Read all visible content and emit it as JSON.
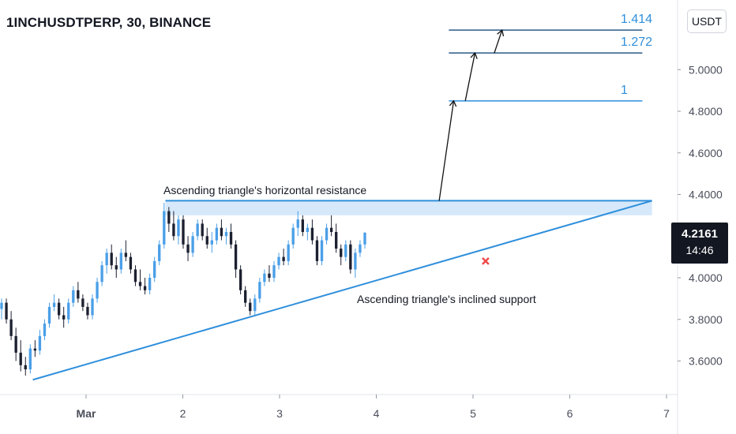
{
  "header": {
    "symbol_title": "1INCHUSDTPERP, 30, BINANCE"
  },
  "toolbar": {
    "currency_label": "USDT"
  },
  "price_tag": {
    "price": "4.2161",
    "countdown": "14:46"
  },
  "colors": {
    "up": "#4a9fe8",
    "down": "#1c2030",
    "line": "#2f8fdb",
    "zone": "#d6e9fb",
    "cross": "#ef4b4b",
    "text": "#131722",
    "axis": "#4a4e5a"
  },
  "chart_data": {
    "type": "candlestick",
    "x_axis": {
      "tick_labels": [
        "Mar",
        "2",
        "3",
        "4",
        "5",
        "6",
        "7"
      ],
      "tick_values": [
        1,
        2,
        3,
        4,
        5,
        6,
        7
      ]
    },
    "y_axis": {
      "tick_labels": [
        "3.6000",
        "3.8000",
        "4.0000",
        "4.2000",
        "4.4000",
        "4.6000",
        "4.8000",
        "5.0000"
      ],
      "tick_values": [
        3.6,
        3.8,
        4.0,
        4.2,
        4.4,
        4.6,
        4.8,
        5.0
      ],
      "range": [
        3.48,
        5.32
      ]
    },
    "grid": false,
    "last_price": 4.2161,
    "candles_ohlc": [
      [
        3.85,
        3.9,
        3.8,
        3.88
      ],
      [
        3.88,
        3.9,
        3.78,
        3.8
      ],
      [
        3.8,
        3.84,
        3.7,
        3.72
      ],
      [
        3.72,
        3.76,
        3.6,
        3.64
      ],
      [
        3.64,
        3.7,
        3.55,
        3.58
      ],
      [
        3.58,
        3.62,
        3.53,
        3.56
      ],
      [
        3.56,
        3.68,
        3.54,
        3.66
      ],
      [
        3.66,
        3.7,
        3.62,
        3.65
      ],
      [
        3.65,
        3.75,
        3.63,
        3.72
      ],
      [
        3.72,
        3.8,
        3.7,
        3.78
      ],
      [
        3.78,
        3.88,
        3.76,
        3.86
      ],
      [
        3.86,
        3.92,
        3.84,
        3.88
      ],
      [
        3.88,
        3.9,
        3.8,
        3.82
      ],
      [
        3.82,
        3.86,
        3.76,
        3.8
      ],
      [
        3.8,
        3.9,
        3.78,
        3.88
      ],
      [
        3.88,
        3.96,
        3.86,
        3.94
      ],
      [
        3.94,
        3.98,
        3.88,
        3.9
      ],
      [
        3.9,
        3.92,
        3.84,
        3.86
      ],
      [
        3.86,
        3.88,
        3.8,
        3.82
      ],
      [
        3.82,
        3.92,
        3.8,
        3.9
      ],
      [
        3.9,
        4.0,
        3.88,
        3.98
      ],
      [
        3.98,
        4.08,
        3.96,
        4.06
      ],
      [
        4.06,
        4.14,
        4.02,
        4.12
      ],
      [
        4.12,
        4.16,
        4.04,
        4.06
      ],
      [
        4.06,
        4.1,
        4.0,
        4.04
      ],
      [
        4.04,
        4.14,
        4.02,
        4.12
      ],
      [
        4.12,
        4.18,
        4.08,
        4.1
      ],
      [
        4.1,
        4.12,
        4.02,
        4.04
      ],
      [
        4.04,
        4.06,
        3.96,
        3.98
      ],
      [
        3.98,
        4.04,
        3.94,
        3.96
      ],
      [
        3.96,
        4.0,
        3.92,
        3.94
      ],
      [
        3.94,
        4.02,
        3.92,
        4.0
      ],
      [
        4.0,
        4.1,
        3.98,
        4.08
      ],
      [
        4.08,
        4.18,
        4.06,
        4.16
      ],
      [
        4.16,
        4.36,
        4.14,
        4.32
      ],
      [
        4.32,
        4.34,
        4.22,
        4.26
      ],
      [
        4.26,
        4.32,
        4.18,
        4.2
      ],
      [
        4.2,
        4.3,
        4.16,
        4.28
      ],
      [
        4.28,
        4.3,
        4.14,
        4.16
      ],
      [
        4.16,
        4.2,
        4.08,
        4.12
      ],
      [
        4.12,
        4.22,
        4.1,
        4.2
      ],
      [
        4.2,
        4.28,
        4.18,
        4.26
      ],
      [
        4.26,
        4.28,
        4.18,
        4.2
      ],
      [
        4.2,
        4.24,
        4.14,
        4.16
      ],
      [
        4.16,
        4.22,
        4.12,
        4.18
      ],
      [
        4.18,
        4.26,
        4.16,
        4.24
      ],
      [
        4.24,
        4.28,
        4.18,
        4.2
      ],
      [
        4.2,
        4.24,
        4.16,
        4.22
      ],
      [
        4.22,
        4.26,
        4.14,
        4.16
      ],
      [
        4.16,
        4.18,
        4.0,
        4.04
      ],
      [
        4.04,
        4.06,
        3.92,
        3.94
      ],
      [
        3.94,
        3.96,
        3.86,
        3.88
      ],
      [
        3.88,
        3.9,
        3.82,
        3.84
      ],
      [
        3.84,
        3.92,
        3.82,
        3.9
      ],
      [
        3.9,
        4.0,
        3.88,
        3.98
      ],
      [
        3.98,
        4.04,
        3.96,
        4.02
      ],
      [
        4.02,
        4.06,
        3.98,
        4.0
      ],
      [
        4.0,
        4.08,
        3.98,
        4.06
      ],
      [
        4.06,
        4.12,
        4.04,
        4.1
      ],
      [
        4.1,
        4.14,
        4.06,
        4.08
      ],
      [
        4.08,
        4.18,
        4.06,
        4.16
      ],
      [
        4.16,
        4.26,
        4.14,
        4.24
      ],
      [
        4.24,
        4.32,
        4.2,
        4.28
      ],
      [
        4.28,
        4.3,
        4.2,
        4.22
      ],
      [
        4.22,
        4.26,
        4.18,
        4.24
      ],
      [
        4.24,
        4.28,
        4.16,
        4.18
      ],
      [
        4.18,
        4.2,
        4.06,
        4.08
      ],
      [
        4.08,
        4.2,
        4.06,
        4.18
      ],
      [
        4.18,
        4.26,
        4.16,
        4.24
      ],
      [
        4.24,
        4.3,
        4.2,
        4.22
      ],
      [
        4.22,
        4.26,
        4.12,
        4.14
      ],
      [
        4.14,
        4.16,
        4.06,
        4.1
      ],
      [
        4.1,
        4.18,
        4.08,
        4.16
      ],
      [
        4.16,
        4.18,
        4.02,
        4.04
      ],
      [
        4.04,
        4.14,
        4.0,
        4.12
      ],
      [
        4.12,
        4.18,
        4.1,
        4.16
      ],
      [
        4.16,
        4.22,
        4.14,
        4.2161
      ]
    ],
    "annotations": [
      {
        "name": "horizontal-resistance",
        "text": "Ascending triangle's horizontal resistance",
        "price_top": 4.37,
        "price_bottom": 4.3,
        "from_x": 1.82,
        "to_x": 6.85
      },
      {
        "name": "inclined-support",
        "text": "Ascending triangle's inclined support",
        "from": [
          0.45,
          3.51
        ],
        "to": [
          6.85,
          4.37
        ]
      },
      {
        "name": "target-1",
        "label": "1",
        "price": 4.85,
        "from_x": 4.75,
        "to_x": 6.75
      },
      {
        "name": "target-1.272",
        "label": "1.272",
        "price": 5.08,
        "from_x": 4.75,
        "to_x": 6.75
      },
      {
        "name": "target-1.414",
        "label": "1.414",
        "price": 5.19,
        "from_x": 4.75,
        "to_x": 6.75
      },
      {
        "name": "invalidation-cross",
        "x": 5.13,
        "price": 4.08
      }
    ],
    "arrows": [
      {
        "from": [
          4.65,
          4.37
        ],
        "to": [
          4.8,
          4.85
        ]
      },
      {
        "from": [
          4.92,
          4.85
        ],
        "to": [
          5.02,
          5.08
        ]
      },
      {
        "from": [
          5.22,
          5.08
        ],
        "to": [
          5.3,
          5.19
        ]
      }
    ]
  }
}
